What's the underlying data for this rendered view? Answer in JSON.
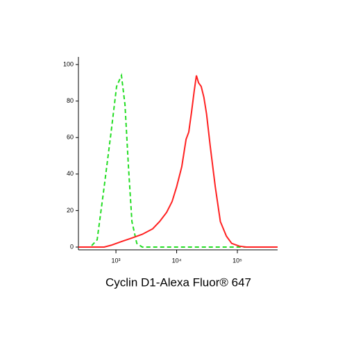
{
  "chart_data": {
    "type": "line",
    "title": "Cyclin D1-Alexa Fluor® 647",
    "xscale": "log",
    "xlim": [
      241,
      460000
    ],
    "ylim": [
      0,
      100
    ],
    "xticks": [
      {
        "value": 1000,
        "label": "10³"
      },
      {
        "value": 10000,
        "label": "10⁴"
      },
      {
        "value": 100000,
        "label": "10⁵"
      }
    ],
    "yticks": [
      0,
      20,
      40,
      60,
      80,
      100
    ],
    "series": [
      {
        "color": "#22dd22",
        "dash": true,
        "x": [
          241,
          378,
          491,
          640,
          832,
          1026,
          1234,
          1408,
          1607,
          1832,
          2203,
          2716,
          460000
        ],
        "values": [
          0,
          0,
          4,
          33,
          63,
          88,
          94,
          78,
          44,
          14,
          2,
          0,
          0
        ]
      },
      {
        "color": "#ff2020",
        "dash": false,
        "x": [
          241,
          640,
          832,
          1234,
          1832,
          2716,
          4032,
          5248,
          6832,
          8424,
          10000,
          12140,
          14290,
          15850,
          17590,
          19520,
          21150,
          22940,
          25390,
          28100,
          31100,
          35790,
          43300,
          52480,
          65860,
          80510,
          108000,
          140000,
          460000
        ],
        "values": [
          0,
          0,
          1,
          3,
          5,
          7,
          10,
          14,
          19,
          25,
          33,
          44,
          59,
          63,
          74,
          86,
          94,
          90,
          88,
          82,
          73,
          55,
          33,
          14,
          6,
          2,
          0.5,
          0,
          0
        ]
      }
    ]
  }
}
